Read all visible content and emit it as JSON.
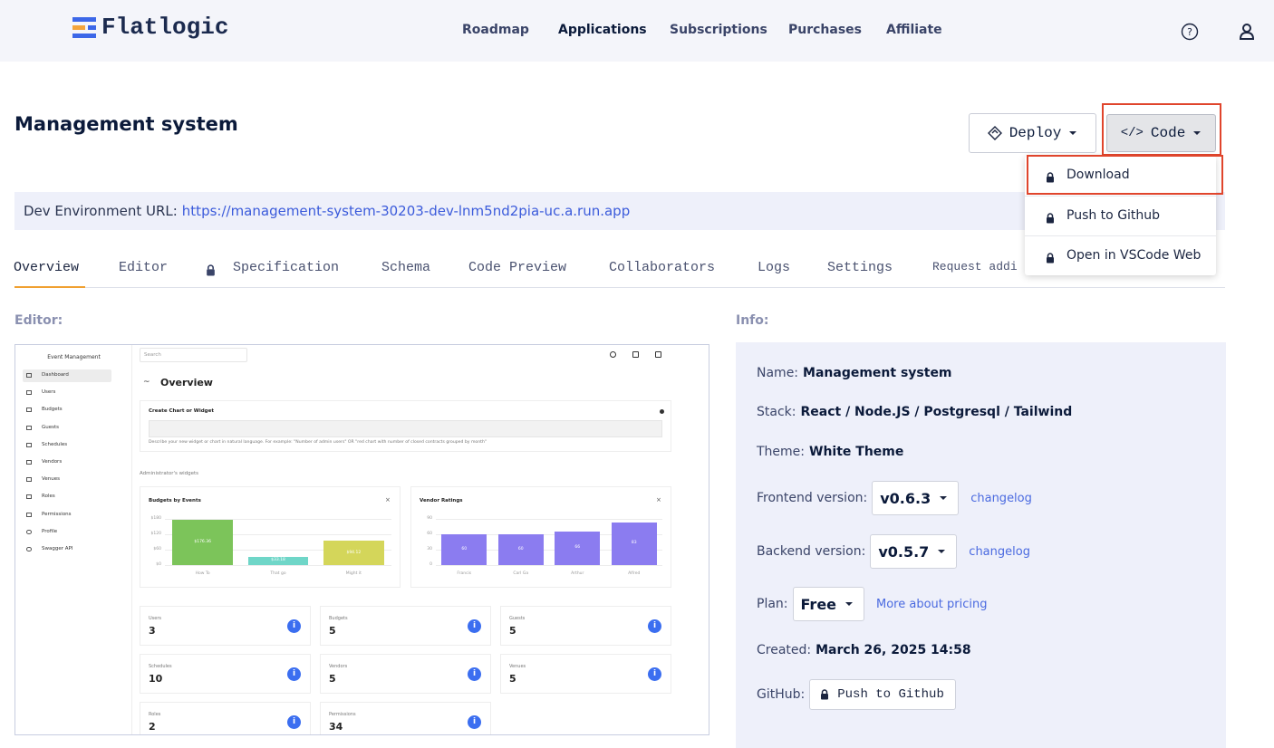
{
  "nav": {
    "brand": "Flatlogic",
    "links": [
      "Roadmap",
      "Applications",
      "Subscriptions",
      "Purchases",
      "Affiliate"
    ]
  },
  "header": {
    "title": "Management system",
    "deploy": "Deploy",
    "code": "Code"
  },
  "code_menu": {
    "items": [
      "Download",
      "Push to Github",
      "Open in VSCode Web"
    ]
  },
  "env": {
    "label": "Dev Environment URL:",
    "url": "https://management-system-30203-dev-lnm5nd2pia-uc.a.run.app"
  },
  "tabs": [
    "Overview",
    "Editor",
    "Specification",
    "Schema",
    "Code Preview",
    "Collaborators",
    "Logs",
    "Settings",
    "Request addi"
  ],
  "editor": {
    "label": "Editor:",
    "preview": {
      "app_name": "Event Management",
      "menu": [
        "Dashboard",
        "Users",
        "Budgets",
        "Guests",
        "Schedules",
        "Vendors",
        "Venues",
        "Roles",
        "Permissions",
        "Profile",
        "Swagger API"
      ],
      "search": "Search",
      "heading": "Overview",
      "widget_card": {
        "title": "Create Chart or Widget",
        "hint": "Describe your new widget or chart in natural language. For example: \"Number of admin users\" OR \"red chart with number of closed contracts grouped by month\""
      },
      "widgets_label": "Administrator's widgets",
      "charts": [
        {
          "title": "Budgets by Events",
          "color": "#7cc45a",
          "ylim": [
            0,
            180
          ],
          "yticks": [
            {
              "value": 0,
              "label": "$0"
            },
            {
              "value": 60,
              "label": "$60"
            },
            {
              "value": 120,
              "label": "$120"
            },
            {
              "value": 180,
              "label": "$180"
            }
          ],
          "categories": [
            "How To",
            "That go",
            "Might it"
          ],
          "values": [
            176.36,
            33.18,
            94.12
          ],
          "value_labels": [
            "$176.36",
            "$33.18",
            "$94.12"
          ],
          "colors": [
            "#7cc45a",
            "#6fd6c8",
            "#d4d65a"
          ]
        },
        {
          "title": "Vendor Ratings",
          "ylim": [
            0,
            90
          ],
          "yticks": [
            0,
            30,
            60,
            90
          ],
          "categories": [
            "Francis",
            "Carl Ga",
            "Arthur",
            "Alfred"
          ],
          "values": [
            60,
            60,
            66,
            83
          ],
          "colors": [
            "#8b7cf0",
            "#8b7cf0",
            "#8b7cf0",
            "#8b7cf0"
          ]
        }
      ],
      "stats": [
        {
          "label": "Users",
          "value": 3
        },
        {
          "label": "Budgets",
          "value": 5
        },
        {
          "label": "Guests",
          "value": 5
        },
        {
          "label": "Schedules",
          "value": 10
        },
        {
          "label": "Vendors",
          "value": 5
        },
        {
          "label": "Venues",
          "value": 5
        },
        {
          "label": "Roles",
          "value": 2
        },
        {
          "label": "Permissions",
          "value": 34
        }
      ]
    }
  },
  "info": {
    "label": "Info:",
    "rows": [
      {
        "label": "Name:",
        "value": "Management system"
      },
      {
        "label": "Stack:",
        "value": "React / Node.JS / Postgresql / Tailwind"
      },
      {
        "label": "Theme:",
        "value": "White Theme"
      },
      {
        "label": "Frontend version:",
        "select": "v0.6.3",
        "link": "changelog"
      },
      {
        "label": "Backend version:",
        "select": "v0.5.7",
        "link": "changelog"
      },
      {
        "label": "Plan:",
        "select": "Free",
        "link": "More about pricing"
      },
      {
        "label": "Created:",
        "value": "March 26, 2025 14:58"
      },
      {
        "label": "GitHub:",
        "button": "Push to Github"
      }
    ]
  }
}
